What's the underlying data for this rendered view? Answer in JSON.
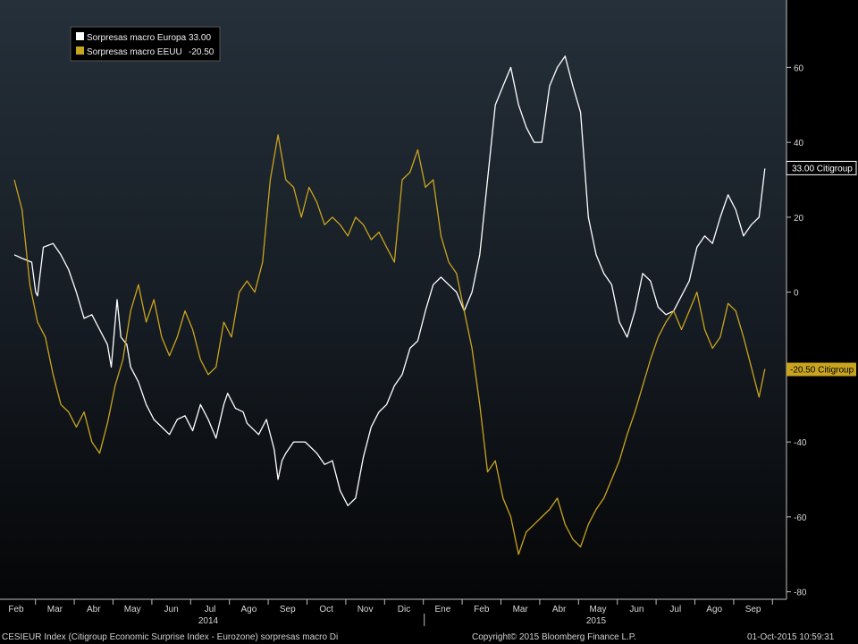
{
  "chart_data": {
    "type": "line",
    "ylim": [
      -82,
      78
    ],
    "yticks": [
      60,
      40,
      20,
      0,
      -20,
      -40,
      -60,
      -80
    ],
    "grid": false,
    "legend_position": "top-left",
    "months": [
      "Feb",
      "Mar",
      "Abr",
      "May",
      "Jun",
      "Jul",
      "Ago",
      "Sep",
      "Oct",
      "Nov",
      "Dic",
      "Ene",
      "Feb",
      "Mar",
      "Abr",
      "May",
      "Jun",
      "Jul",
      "Ago",
      "Sep"
    ],
    "years": [
      "2014",
      "2015"
    ],
    "series": [
      {
        "name": "Sorpresas macro Europa",
        "last_value_text": "33.00",
        "tag_label": "33.00 Citigroup",
        "color": "#ffffff",
        "values": [
          [
            0.0,
            10
          ],
          [
            0.2,
            9
          ],
          [
            0.45,
            8
          ],
          [
            0.55,
            0
          ],
          [
            0.6,
            -1
          ],
          [
            0.75,
            12
          ],
          [
            1.0,
            13
          ],
          [
            1.2,
            10
          ],
          [
            1.4,
            6
          ],
          [
            1.6,
            0
          ],
          [
            1.8,
            -7
          ],
          [
            2.0,
            -6
          ],
          [
            2.2,
            -10
          ],
          [
            2.4,
            -14
          ],
          [
            2.5,
            -20
          ],
          [
            2.65,
            -2
          ],
          [
            2.75,
            -12
          ],
          [
            2.9,
            -14
          ],
          [
            3.0,
            -20
          ],
          [
            3.2,
            -24
          ],
          [
            3.4,
            -30
          ],
          [
            3.6,
            -34
          ],
          [
            3.8,
            -36
          ],
          [
            4.0,
            -38
          ],
          [
            4.2,
            -34
          ],
          [
            4.4,
            -33
          ],
          [
            4.6,
            -37
          ],
          [
            4.8,
            -30
          ],
          [
            5.0,
            -34
          ],
          [
            5.2,
            -39
          ],
          [
            5.4,
            -30
          ],
          [
            5.5,
            -27
          ],
          [
            5.7,
            -31
          ],
          [
            5.9,
            -32
          ],
          [
            6.0,
            -35
          ],
          [
            6.3,
            -38
          ],
          [
            6.5,
            -34
          ],
          [
            6.7,
            -42
          ],
          [
            6.8,
            -50
          ],
          [
            6.9,
            -45
          ],
          [
            7.0,
            -43
          ],
          [
            7.2,
            -40
          ],
          [
            7.5,
            -40
          ],
          [
            7.8,
            -43
          ],
          [
            8.0,
            -46
          ],
          [
            8.2,
            -45
          ],
          [
            8.4,
            -53
          ],
          [
            8.6,
            -57
          ],
          [
            8.8,
            -55
          ],
          [
            9.0,
            -44
          ],
          [
            9.2,
            -36
          ],
          [
            9.4,
            -32
          ],
          [
            9.6,
            -30
          ],
          [
            9.8,
            -25
          ],
          [
            10.0,
            -22
          ],
          [
            10.2,
            -15
          ],
          [
            10.4,
            -13
          ],
          [
            10.6,
            -5
          ],
          [
            10.8,
            2
          ],
          [
            11.0,
            4
          ],
          [
            11.2,
            2
          ],
          [
            11.4,
            0
          ],
          [
            11.6,
            -5
          ],
          [
            11.8,
            0
          ],
          [
            12.0,
            10
          ],
          [
            12.2,
            30
          ],
          [
            12.4,
            50
          ],
          [
            12.6,
            55
          ],
          [
            12.8,
            60
          ],
          [
            13.0,
            50
          ],
          [
            13.2,
            44
          ],
          [
            13.4,
            40
          ],
          [
            13.6,
            40
          ],
          [
            13.8,
            55
          ],
          [
            14.0,
            60
          ],
          [
            14.2,
            63
          ],
          [
            14.4,
            55
          ],
          [
            14.6,
            48
          ],
          [
            14.8,
            20
          ],
          [
            15.0,
            10
          ],
          [
            15.2,
            5
          ],
          [
            15.4,
            2
          ],
          [
            15.6,
            -8
          ],
          [
            15.8,
            -12
          ],
          [
            16.0,
            -5
          ],
          [
            16.2,
            5
          ],
          [
            16.4,
            3
          ],
          [
            16.6,
            -4
          ],
          [
            16.8,
            -6
          ],
          [
            17.0,
            -5
          ],
          [
            17.2,
            -1
          ],
          [
            17.4,
            3
          ],
          [
            17.6,
            12
          ],
          [
            17.8,
            15
          ],
          [
            18.0,
            13
          ],
          [
            18.2,
            20
          ],
          [
            18.4,
            26
          ],
          [
            18.6,
            22
          ],
          [
            18.8,
            15
          ],
          [
            19.0,
            18
          ],
          [
            19.2,
            20
          ],
          [
            19.35,
            33
          ]
        ]
      },
      {
        "name": "Sorpresas macro EEUU",
        "last_value_text": "-20.50",
        "tag_label": "-20.50 Citigroup",
        "color": "#c9a41f",
        "values": [
          [
            0.0,
            30
          ],
          [
            0.2,
            22
          ],
          [
            0.4,
            2
          ],
          [
            0.6,
            -8
          ],
          [
            0.8,
            -12
          ],
          [
            1.0,
            -22
          ],
          [
            1.2,
            -30
          ],
          [
            1.4,
            -32
          ],
          [
            1.6,
            -36
          ],
          [
            1.8,
            -32
          ],
          [
            2.0,
            -40
          ],
          [
            2.2,
            -43
          ],
          [
            2.4,
            -35
          ],
          [
            2.6,
            -25
          ],
          [
            2.8,
            -18
          ],
          [
            3.0,
            -5
          ],
          [
            3.2,
            2
          ],
          [
            3.4,
            -8
          ],
          [
            3.6,
            -2
          ],
          [
            3.8,
            -12
          ],
          [
            4.0,
            -17
          ],
          [
            4.2,
            -12
          ],
          [
            4.4,
            -5
          ],
          [
            4.6,
            -10
          ],
          [
            4.8,
            -18
          ],
          [
            5.0,
            -22
          ],
          [
            5.2,
            -20
          ],
          [
            5.4,
            -8
          ],
          [
            5.6,
            -12
          ],
          [
            5.8,
            0
          ],
          [
            6.0,
            3
          ],
          [
            6.2,
            0
          ],
          [
            6.4,
            8
          ],
          [
            6.6,
            30
          ],
          [
            6.8,
            42
          ],
          [
            7.0,
            30
          ],
          [
            7.2,
            28
          ],
          [
            7.4,
            20
          ],
          [
            7.6,
            28
          ],
          [
            7.8,
            24
          ],
          [
            8.0,
            18
          ],
          [
            8.2,
            20
          ],
          [
            8.4,
            18
          ],
          [
            8.6,
            15
          ],
          [
            8.8,
            20
          ],
          [
            9.0,
            18
          ],
          [
            9.2,
            14
          ],
          [
            9.4,
            16
          ],
          [
            9.6,
            12
          ],
          [
            9.8,
            8
          ],
          [
            10.0,
            30
          ],
          [
            10.2,
            32
          ],
          [
            10.4,
            38
          ],
          [
            10.6,
            28
          ],
          [
            10.8,
            30
          ],
          [
            11.0,
            15
          ],
          [
            11.2,
            8
          ],
          [
            11.4,
            5
          ],
          [
            11.6,
            -5
          ],
          [
            11.8,
            -15
          ],
          [
            12.0,
            -30
          ],
          [
            12.2,
            -48
          ],
          [
            12.4,
            -45
          ],
          [
            12.6,
            -55
          ],
          [
            12.8,
            -60
          ],
          [
            13.0,
            -70
          ],
          [
            13.2,
            -64
          ],
          [
            13.4,
            -62
          ],
          [
            13.6,
            -60
          ],
          [
            13.8,
            -58
          ],
          [
            14.0,
            -55
          ],
          [
            14.2,
            -62
          ],
          [
            14.4,
            -66
          ],
          [
            14.6,
            -68
          ],
          [
            14.8,
            -62
          ],
          [
            15.0,
            -58
          ],
          [
            15.2,
            -55
          ],
          [
            15.4,
            -50
          ],
          [
            15.6,
            -45
          ],
          [
            15.8,
            -38
          ],
          [
            16.0,
            -32
          ],
          [
            16.2,
            -25
          ],
          [
            16.4,
            -18
          ],
          [
            16.6,
            -12
          ],
          [
            16.8,
            -8
          ],
          [
            17.0,
            -5
          ],
          [
            17.2,
            -10
          ],
          [
            17.4,
            -5
          ],
          [
            17.6,
            0
          ],
          [
            17.8,
            -10
          ],
          [
            18.0,
            -15
          ],
          [
            18.2,
            -12
          ],
          [
            18.4,
            -3
          ],
          [
            18.6,
            -5
          ],
          [
            18.8,
            -12
          ],
          [
            19.0,
            -20
          ],
          [
            19.2,
            -28
          ],
          [
            19.35,
            -20.5
          ]
        ]
      }
    ]
  },
  "footer": {
    "left": "CESIEUR Index (Citigroup Economic Surprise Index - Eurozone) sorpresas macro  Di",
    "center": "Copyright© 2015 Bloomberg Finance L.P.",
    "right": "01-Oct-2015 10:59:31"
  }
}
